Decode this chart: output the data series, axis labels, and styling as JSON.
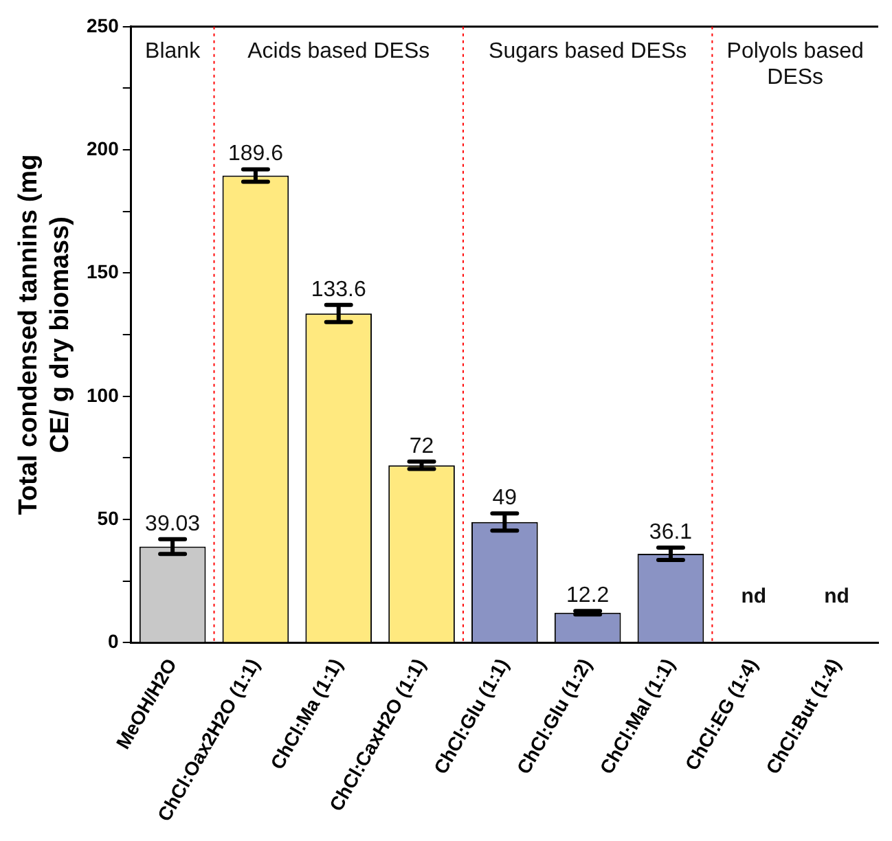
{
  "chart_data": {
    "type": "bar",
    "ylabel": "Total condensed tannins (mg CE/ g dry biomass)",
    "categories": [
      "MeOH/H2O",
      "ChCl:Oax2H2O (1:1)",
      "ChCl:Ma (1:1)",
      "ChCl:CaxH2O (1:1)",
      "ChCl:Glu (1:1)",
      "ChCl:Glu (1:2)",
      "ChCl:Mal (1:1)",
      "ChCl:EG (1:4)",
      "ChCl:But (1:4)"
    ],
    "values": [
      39.03,
      189.6,
      133.6,
      72,
      49,
      12.2,
      36.1,
      null,
      null
    ],
    "colors": [
      "#c8c8c8",
      "#ffe97f",
      "#ffe97f",
      "#ffe97f",
      "#8a93c4",
      "#8a93c4",
      "#8a93c4",
      "#8a93c4",
      "#8a93c4"
    ],
    "errors": [
      3,
      2.5,
      3.5,
      1.5,
      3.5,
      0.7,
      2.5,
      null,
      null
    ],
    "value_labels": [
      "39.03",
      "189.6",
      "133.6",
      "72",
      "49",
      "12.2",
      "36.1",
      "nd",
      "nd"
    ],
    "annotations": [
      "Blank",
      "Acids based DESs",
      "Sugars based DESs",
      "Polyols based DESs"
    ],
    "ylim": [
      0,
      250
    ],
    "yticks": [
      0,
      {
        "value": 25,
        "label": null
      },
      50,
      {
        "value": 75,
        "label": null
      },
      100,
      {
        "value": 125,
        "label": null
      },
      150,
      {
        "value": 175,
        "label": null
      },
      200,
      {
        "value": 225,
        "label": null
      },
      250
    ],
    "grid": false,
    "legend": false
  }
}
